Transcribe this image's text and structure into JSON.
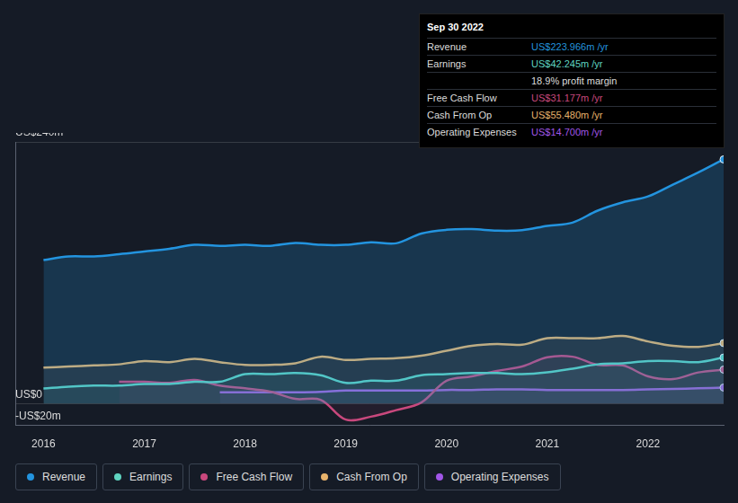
{
  "chart_data": {
    "type": "line",
    "x": [
      2016,
      2016.25,
      2016.5,
      2016.75,
      2017,
      2017.25,
      2017.5,
      2017.75,
      2018,
      2018.25,
      2018.5,
      2018.75,
      2019,
      2019.25,
      2019.5,
      2019.75,
      2020,
      2020.25,
      2020.5,
      2020.75,
      2021,
      2021.25,
      2021.5,
      2021.75,
      2022,
      2022.25,
      2022.5,
      2022.75
    ],
    "series": [
      {
        "name": "Revenue",
        "color": "#2394df",
        "values": [
          131.7,
          135,
          135,
          137,
          139.5,
          142,
          145.6,
          144.7,
          145.6,
          144.7,
          147.3,
          145.6,
          145.6,
          148,
          147,
          156,
          159.4,
          160,
          158.6,
          159,
          163,
          166,
          177,
          184.6,
          190,
          201,
          212,
          223.966
        ]
      },
      {
        "name": "Earnings",
        "color": "#5fd4c0",
        "values": [
          13.9,
          15.6,
          16.5,
          16.5,
          18,
          18,
          20,
          20,
          27,
          27,
          28,
          26,
          19,
          21,
          21,
          26,
          27,
          28,
          28,
          27,
          28.6,
          32,
          36,
          37,
          39,
          39,
          38,
          42.245
        ]
      },
      {
        "name": "Free Cash Flow",
        "color": "#c9487d",
        "values": [
          null,
          null,
          null,
          20,
          20,
          19,
          21.7,
          16.5,
          14,
          11,
          4.3,
          3.5,
          -14.7,
          -12,
          -6,
          1,
          21,
          25,
          30,
          34,
          42.5,
          43,
          35.5,
          35,
          25,
          22.5,
          28.6,
          31.177
        ]
      },
      {
        "name": "Cash From Op",
        "color": "#e8b36b",
        "values": [
          33,
          34,
          35,
          36,
          39,
          38,
          41,
          38,
          35.5,
          35.5,
          37,
          43,
          40,
          41,
          41.6,
          44,
          48.5,
          53,
          54.6,
          54,
          60,
          60,
          60,
          62,
          57,
          53,
          52,
          55.48
        ]
      },
      {
        "name": "Operating Expenses",
        "color": "#a156e8",
        "values": [
          null,
          null,
          null,
          null,
          null,
          null,
          null,
          10.4,
          10.4,
          10.4,
          10.4,
          10.8,
          12,
          12,
          12,
          12,
          12.5,
          12.5,
          13,
          13,
          12.5,
          12.5,
          12.5,
          12.5,
          13,
          13.5,
          14,
          14.7
        ]
      }
    ],
    "xlim": [
      2015.72,
      2022.75
    ],
    "xticks": [
      2016,
      2017,
      2018,
      2019,
      2020,
      2021,
      2022
    ],
    "ylim": [
      -20,
      240
    ],
    "yticks": [
      {
        "value": 240,
        "label": "US$240m"
      },
      {
        "value": 0,
        "label": "US$0"
      },
      {
        "value": -20,
        "label": "-US$20m"
      }
    ],
    "grid": true,
    "legend": "bottom",
    "annotations": {
      "title": "Sep 30 2022",
      "rows": [
        {
          "label": "Revenue",
          "value": "US$223.966m /yr"
        },
        {
          "label": "Earnings",
          "value": "US$42.245m /yr"
        },
        {
          "value": "18.9% profit margin"
        },
        {
          "label": "Free Cash Flow",
          "value": "US$31.177m /yr"
        },
        {
          "label": "Cash From Op",
          "value": "US$55.480m /yr"
        },
        {
          "label": "Operating Expenses",
          "value": "US$14.700m /yr"
        }
      ]
    }
  }
}
